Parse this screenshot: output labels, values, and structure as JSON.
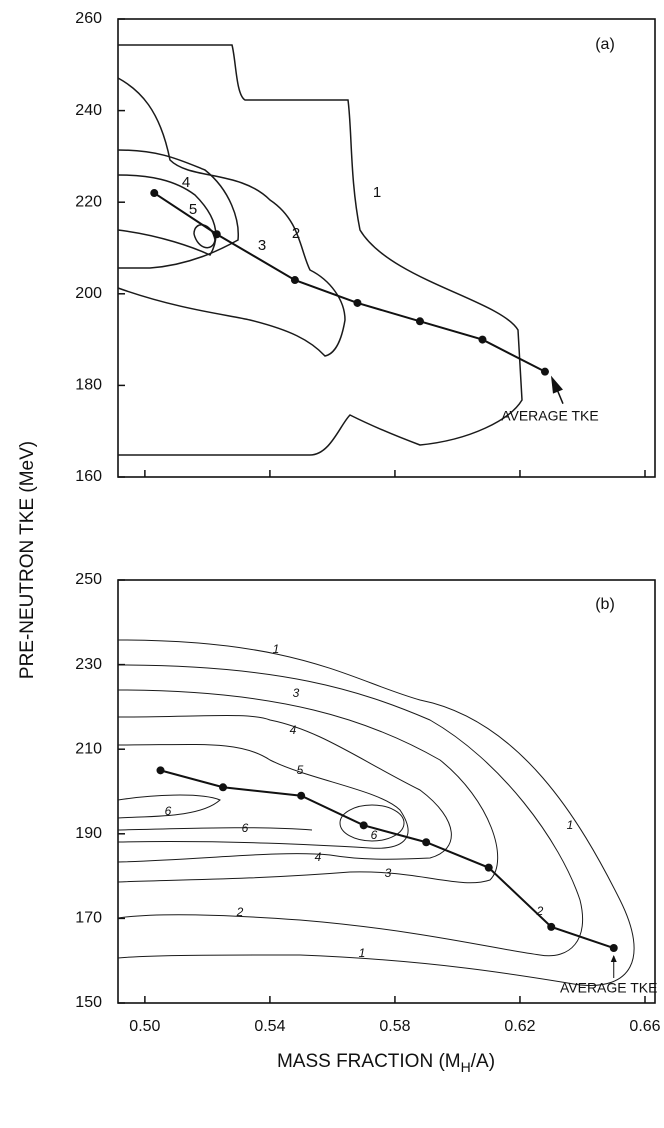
{
  "chart_data": [
    {
      "type": "line",
      "panel_label": "(a)",
      "y_label": "PRE-NEUTRON  TKE (MeV)",
      "x": [
        0.503,
        0.523,
        0.548,
        0.568,
        0.588,
        0.608,
        0.628
      ],
      "values": [
        222,
        213,
        203,
        198,
        194,
        190,
        183
      ],
      "color": "#111111",
      "xlim": [
        0.4914,
        0.6632
      ],
      "ylim": [
        160,
        260
      ],
      "xticks": [
        0.5,
        0.54,
        0.58,
        0.62,
        0.66
      ],
      "yticks": [
        160,
        180,
        200,
        220,
        240,
        260
      ],
      "annotation": "AVERAGE TKE",
      "contour_labels": [
        1,
        2,
        3,
        4,
        5
      ]
    },
    {
      "type": "line",
      "panel_label": "(b)",
      "x_label": "MASS FRACTION (M",
      "x_label_sub": "H",
      "x_label_end": "/A)",
      "x": [
        0.505,
        0.525,
        0.55,
        0.57,
        0.59,
        0.61,
        0.63,
        0.65
      ],
      "values": [
        205,
        201,
        199,
        192,
        188,
        182,
        168,
        163
      ],
      "color": "#111111",
      "xlim": [
        0.4914,
        0.6632
      ],
      "ylim": [
        150,
        250
      ],
      "xticks": [
        {
          "value": 0.5,
          "label": "0.50"
        },
        0.54,
        0.58,
        0.62,
        0.66
      ],
      "yticks": [
        150,
        170,
        190,
        210,
        230,
        250
      ],
      "annotation": "AVERAGE TKE",
      "contour_labels": [
        1,
        3,
        4,
        5,
        6,
        6,
        6,
        4,
        3,
        2,
        1,
        1,
        2
      ]
    }
  ]
}
